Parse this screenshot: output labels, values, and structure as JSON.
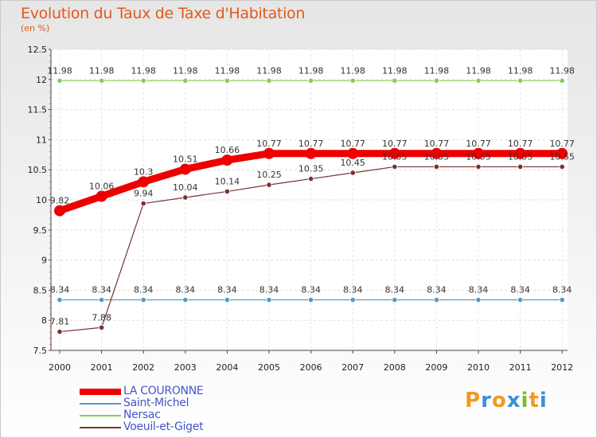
{
  "chart_data": {
    "type": "line",
    "title": "Evolution du Taux de Taxe d'Habitation",
    "subtitle": "(en %)",
    "xlabel": "",
    "ylabel": "",
    "ylim": [
      7.5,
      12.5
    ],
    "yticks": [
      "7.5",
      "8",
      "8.5",
      "9",
      "9.5",
      "10",
      "10.5",
      "11",
      "11.5",
      "12",
      "12.5"
    ],
    "ytick_values": [
      7.5,
      8,
      8.5,
      9,
      9.5,
      10,
      10.5,
      11,
      11.5,
      12,
      12.5
    ],
    "categories": [
      "2000",
      "2001",
      "2002",
      "2003",
      "2004",
      "2005",
      "2006",
      "2007",
      "2008",
      "2009",
      "2010",
      "2011",
      "2012"
    ],
    "legend_position": "bottom-left",
    "series": [
      {
        "name": "LA COURONNE",
        "color": "#ee0000",
        "values": [
          9.82,
          10.06,
          10.3,
          10.51,
          10.66,
          10.77,
          10.77,
          10.77,
          10.77,
          10.77,
          10.77,
          10.77,
          10.77
        ],
        "labels": [
          "9.82",
          "10.06",
          "10.3",
          "10.51",
          "10.66",
          "10.77",
          "10.77",
          "10.77",
          "10.77",
          "10.77",
          "10.77",
          "10.77",
          "10.77"
        ]
      },
      {
        "name": "Saint-Michel",
        "color": "#5599cc",
        "values": [
          8.34,
          8.34,
          8.34,
          8.34,
          8.34,
          8.34,
          8.34,
          8.34,
          8.34,
          8.34,
          8.34,
          8.34,
          8.34
        ],
        "labels": [
          "8.34",
          "8.34",
          "8.34",
          "8.34",
          "8.34",
          "8.34",
          "8.34",
          "8.34",
          "8.34",
          "8.34",
          "8.34",
          "8.34",
          "8.34"
        ]
      },
      {
        "name": "Nersac",
        "color": "#88cc55",
        "values": [
          11.98,
          11.98,
          11.98,
          11.98,
          11.98,
          11.98,
          11.98,
          11.98,
          11.98,
          11.98,
          11.98,
          11.98,
          11.98
        ],
        "labels": [
          "11.98",
          "11.98",
          "11.98",
          "11.98",
          "11.98",
          "11.98",
          "11.98",
          "11.98",
          "11.98",
          "11.98",
          "11.98",
          "11.98",
          "11.98"
        ]
      },
      {
        "name": "Voeuil-et-Giget",
        "color": "#773333",
        "values": [
          7.81,
          7.88,
          9.94,
          10.04,
          10.14,
          10.25,
          10.35,
          10.45,
          10.55,
          10.55,
          10.55,
          10.55,
          10.55
        ],
        "labels": [
          "7.81",
          "7.88",
          "9.94",
          "10.04",
          "10.14",
          "10.25",
          "10.35",
          "10.45",
          "10.55",
          "10.55",
          "10.55",
          "10.55",
          "10.55"
        ]
      }
    ]
  },
  "logo": {
    "letters": [
      "P",
      "r",
      "o",
      "x",
      "i",
      "t",
      "i"
    ],
    "colors": [
      "#f29a1e",
      "#3d8fd6",
      "#f29a1e",
      "#3d8fd6",
      "#7cbd2f",
      "#f29a1e",
      "#3d8fd6"
    ]
  }
}
